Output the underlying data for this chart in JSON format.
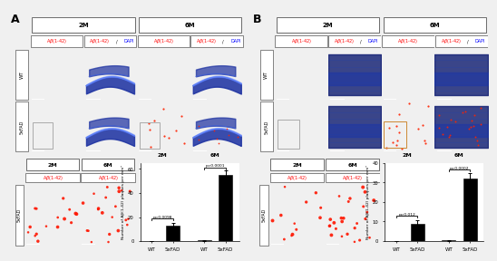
{
  "fig_bg": "#f0f0f0",
  "panel_bg": "#ffffff",
  "bar_values_A_2M": [
    0,
    13
  ],
  "bar_values_A_6M": [
    0.5,
    55
  ],
  "bar_values_A_err_2M": [
    0,
    2.0
  ],
  "bar_values_A_err_6M": [
    0.2,
    3.5
  ],
  "bar_values_B_2M": [
    0,
    9
  ],
  "bar_values_B_6M": [
    0.3,
    32
  ],
  "bar_values_B_err_2M": [
    0,
    1.5
  ],
  "bar_values_B_err_6M": [
    0.2,
    3.0
  ],
  "pval_A_2M": "p=0.0098",
  "pval_A_6M": "p<0.0001",
  "pval_B_2M": "p=0.012",
  "pval_B_6M": "p=0.0002",
  "ylim_A": [
    0,
    65
  ],
  "ylim_B": [
    0,
    40
  ],
  "yticks_A": [
    0,
    20,
    40,
    60
  ],
  "yticks_B": [
    0,
    10,
    20,
    30,
    40
  ],
  "bar_ylabel_A": "Number of Aβ(1-42) plaques per mm²",
  "bar_ylabel_B": "Number of Aβ(1-42) plaques per mm²"
}
